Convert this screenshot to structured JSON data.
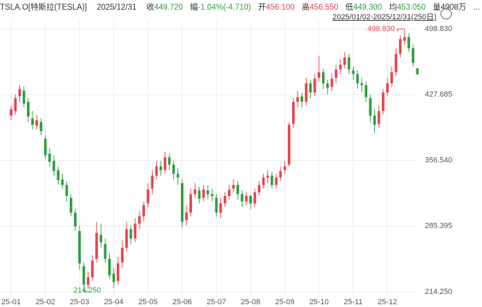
{
  "header": {
    "symbol": "TSLA.O[特斯拉(TESLA)]",
    "date": "2025/12/31",
    "close_label": "收",
    "close": "449.720",
    "change_label": "幅",
    "change": "-1.04%(-4.710)",
    "open_label": "开",
    "open": "456.100",
    "high_label": "高",
    "high": "456.550",
    "low_label": "低",
    "low": "449.300",
    "avg_label": "均",
    "avg": "453.050",
    "vol_label": "量",
    "vol": "4908万",
    "more": "...",
    "range": "2025/01/02-2025/12/31(250日)"
  },
  "chart_data": {
    "type": "candlestick",
    "up_color": "#e8434f",
    "down_color": "#2e9e3e",
    "grid": true,
    "xlim": [
      -2.6,
      95.1
    ],
    "xticks": [
      {
        "value": 0,
        "label": "25-01"
      },
      {
        "value": 8,
        "label": "25-02"
      },
      {
        "value": 16,
        "label": "25-03"
      },
      {
        "value": 24,
        "label": "25-04"
      },
      {
        "value": 32,
        "label": "25-05"
      },
      {
        "value": 40,
        "label": "25-06"
      },
      {
        "value": 48,
        "label": "25-07"
      },
      {
        "value": 56,
        "label": "25-08"
      },
      {
        "value": 64,
        "label": "25-09"
      },
      {
        "value": 72,
        "label": "25-10"
      },
      {
        "value": 80,
        "label": "25-11"
      },
      {
        "value": 88,
        "label": "25-12"
      }
    ],
    "ylim": [
      214.25,
      498.83
    ],
    "yticks": [
      {
        "value": 498.83,
        "label": "498.830"
      },
      {
        "value": 427.685,
        "label": "427.685"
      },
      {
        "value": 356.54,
        "label": "356.540"
      },
      {
        "value": 285.395,
        "label": "285.395"
      },
      {
        "value": 214.25,
        "label": "214.250"
      }
    ],
    "max_marker": {
      "index": 92,
      "value": 498.83,
      "label": "498.830"
    },
    "min_marker": {
      "index": 17,
      "value": 214.25,
      "label": "214.250"
    },
    "open": [
      405,
      410,
      426,
      432,
      420,
      402,
      394,
      398,
      380,
      364,
      356,
      346,
      336,
      330,
      316,
      300,
      280,
      242,
      222,
      230,
      250,
      276,
      266,
      250,
      234,
      226,
      246,
      262,
      282,
      272,
      288,
      296,
      310,
      326,
      340,
      350,
      346,
      360,
      352,
      342,
      332,
      292,
      300,
      320,
      324,
      316,
      324,
      320,
      316,
      300,
      310,
      318,
      326,
      330,
      320,
      312,
      318,
      310,
      322,
      330,
      338,
      340,
      330,
      338,
      346,
      352,
      396,
      420,
      426,
      420,
      440,
      430,
      446,
      452,
      440,
      436,
      446,
      455,
      460,
      468,
      454,
      450,
      440,
      438,
      424,
      405,
      396,
      410,
      430,
      440,
      452,
      472,
      486,
      490,
      478,
      456.1
    ],
    "high": [
      416,
      428,
      438,
      436,
      424,
      410,
      406,
      402,
      384,
      370,
      362,
      350,
      342,
      334,
      320,
      304,
      286,
      246,
      236,
      254,
      290,
      288,
      272,
      256,
      240,
      252,
      270,
      290,
      286,
      294,
      302,
      312,
      332,
      346,
      356,
      356,
      366,
      364,
      356,
      348,
      336,
      308,
      326,
      332,
      328,
      330,
      330,
      326,
      320,
      316,
      322,
      330,
      336,
      334,
      324,
      322,
      320,
      326,
      334,
      342,
      346,
      344,
      342,
      350,
      356,
      398,
      424,
      432,
      430,
      446,
      444,
      450,
      470,
      456,
      444,
      450,
      460,
      466,
      474,
      472,
      458,
      454,
      446,
      442,
      428,
      412,
      416,
      434,
      446,
      458,
      478,
      492,
      498.83,
      494,
      482,
      456.55
    ],
    "low": [
      400,
      406,
      420,
      414,
      398,
      390,
      390,
      384,
      358,
      350,
      340,
      330,
      326,
      312,
      296,
      280,
      238,
      214.25,
      218,
      226,
      246,
      262,
      246,
      228,
      218,
      222,
      240,
      258,
      266,
      268,
      282,
      290,
      306,
      320,
      336,
      340,
      342,
      346,
      336,
      330,
      284,
      286,
      296,
      316,
      310,
      312,
      314,
      312,
      296,
      294,
      306,
      314,
      322,
      314,
      306,
      308,
      304,
      306,
      318,
      326,
      332,
      326,
      326,
      334,
      342,
      350,
      392,
      414,
      414,
      416,
      424,
      426,
      442,
      434,
      428,
      432,
      440,
      450,
      456,
      450,
      444,
      434,
      430,
      420,
      398,
      386,
      392,
      406,
      426,
      436,
      448,
      468,
      482,
      474,
      458,
      449.3
    ],
    "close": [
      412,
      424,
      434,
      418,
      404,
      395,
      400,
      388,
      362,
      355,
      345,
      335,
      330,
      318,
      300,
      285,
      245,
      222,
      230,
      248,
      278,
      268,
      250,
      232,
      225,
      245,
      262,
      282,
      272,
      288,
      296,
      308,
      325,
      340,
      350,
      346,
      360,
      352,
      342,
      338,
      290,
      300,
      320,
      325,
      315,
      325,
      320,
      318,
      300,
      310,
      318,
      325,
      330,
      320,
      312,
      318,
      310,
      322,
      330,
      338,
      340,
      330,
      338,
      345,
      350,
      395,
      420,
      425,
      420,
      440,
      430,
      445,
      452,
      440,
      435,
      445,
      455,
      460,
      468,
      455,
      450,
      440,
      438,
      425,
      405,
      395,
      410,
      430,
      440,
      452,
      472,
      488,
      490,
      478,
      462,
      449.72
    ]
  }
}
